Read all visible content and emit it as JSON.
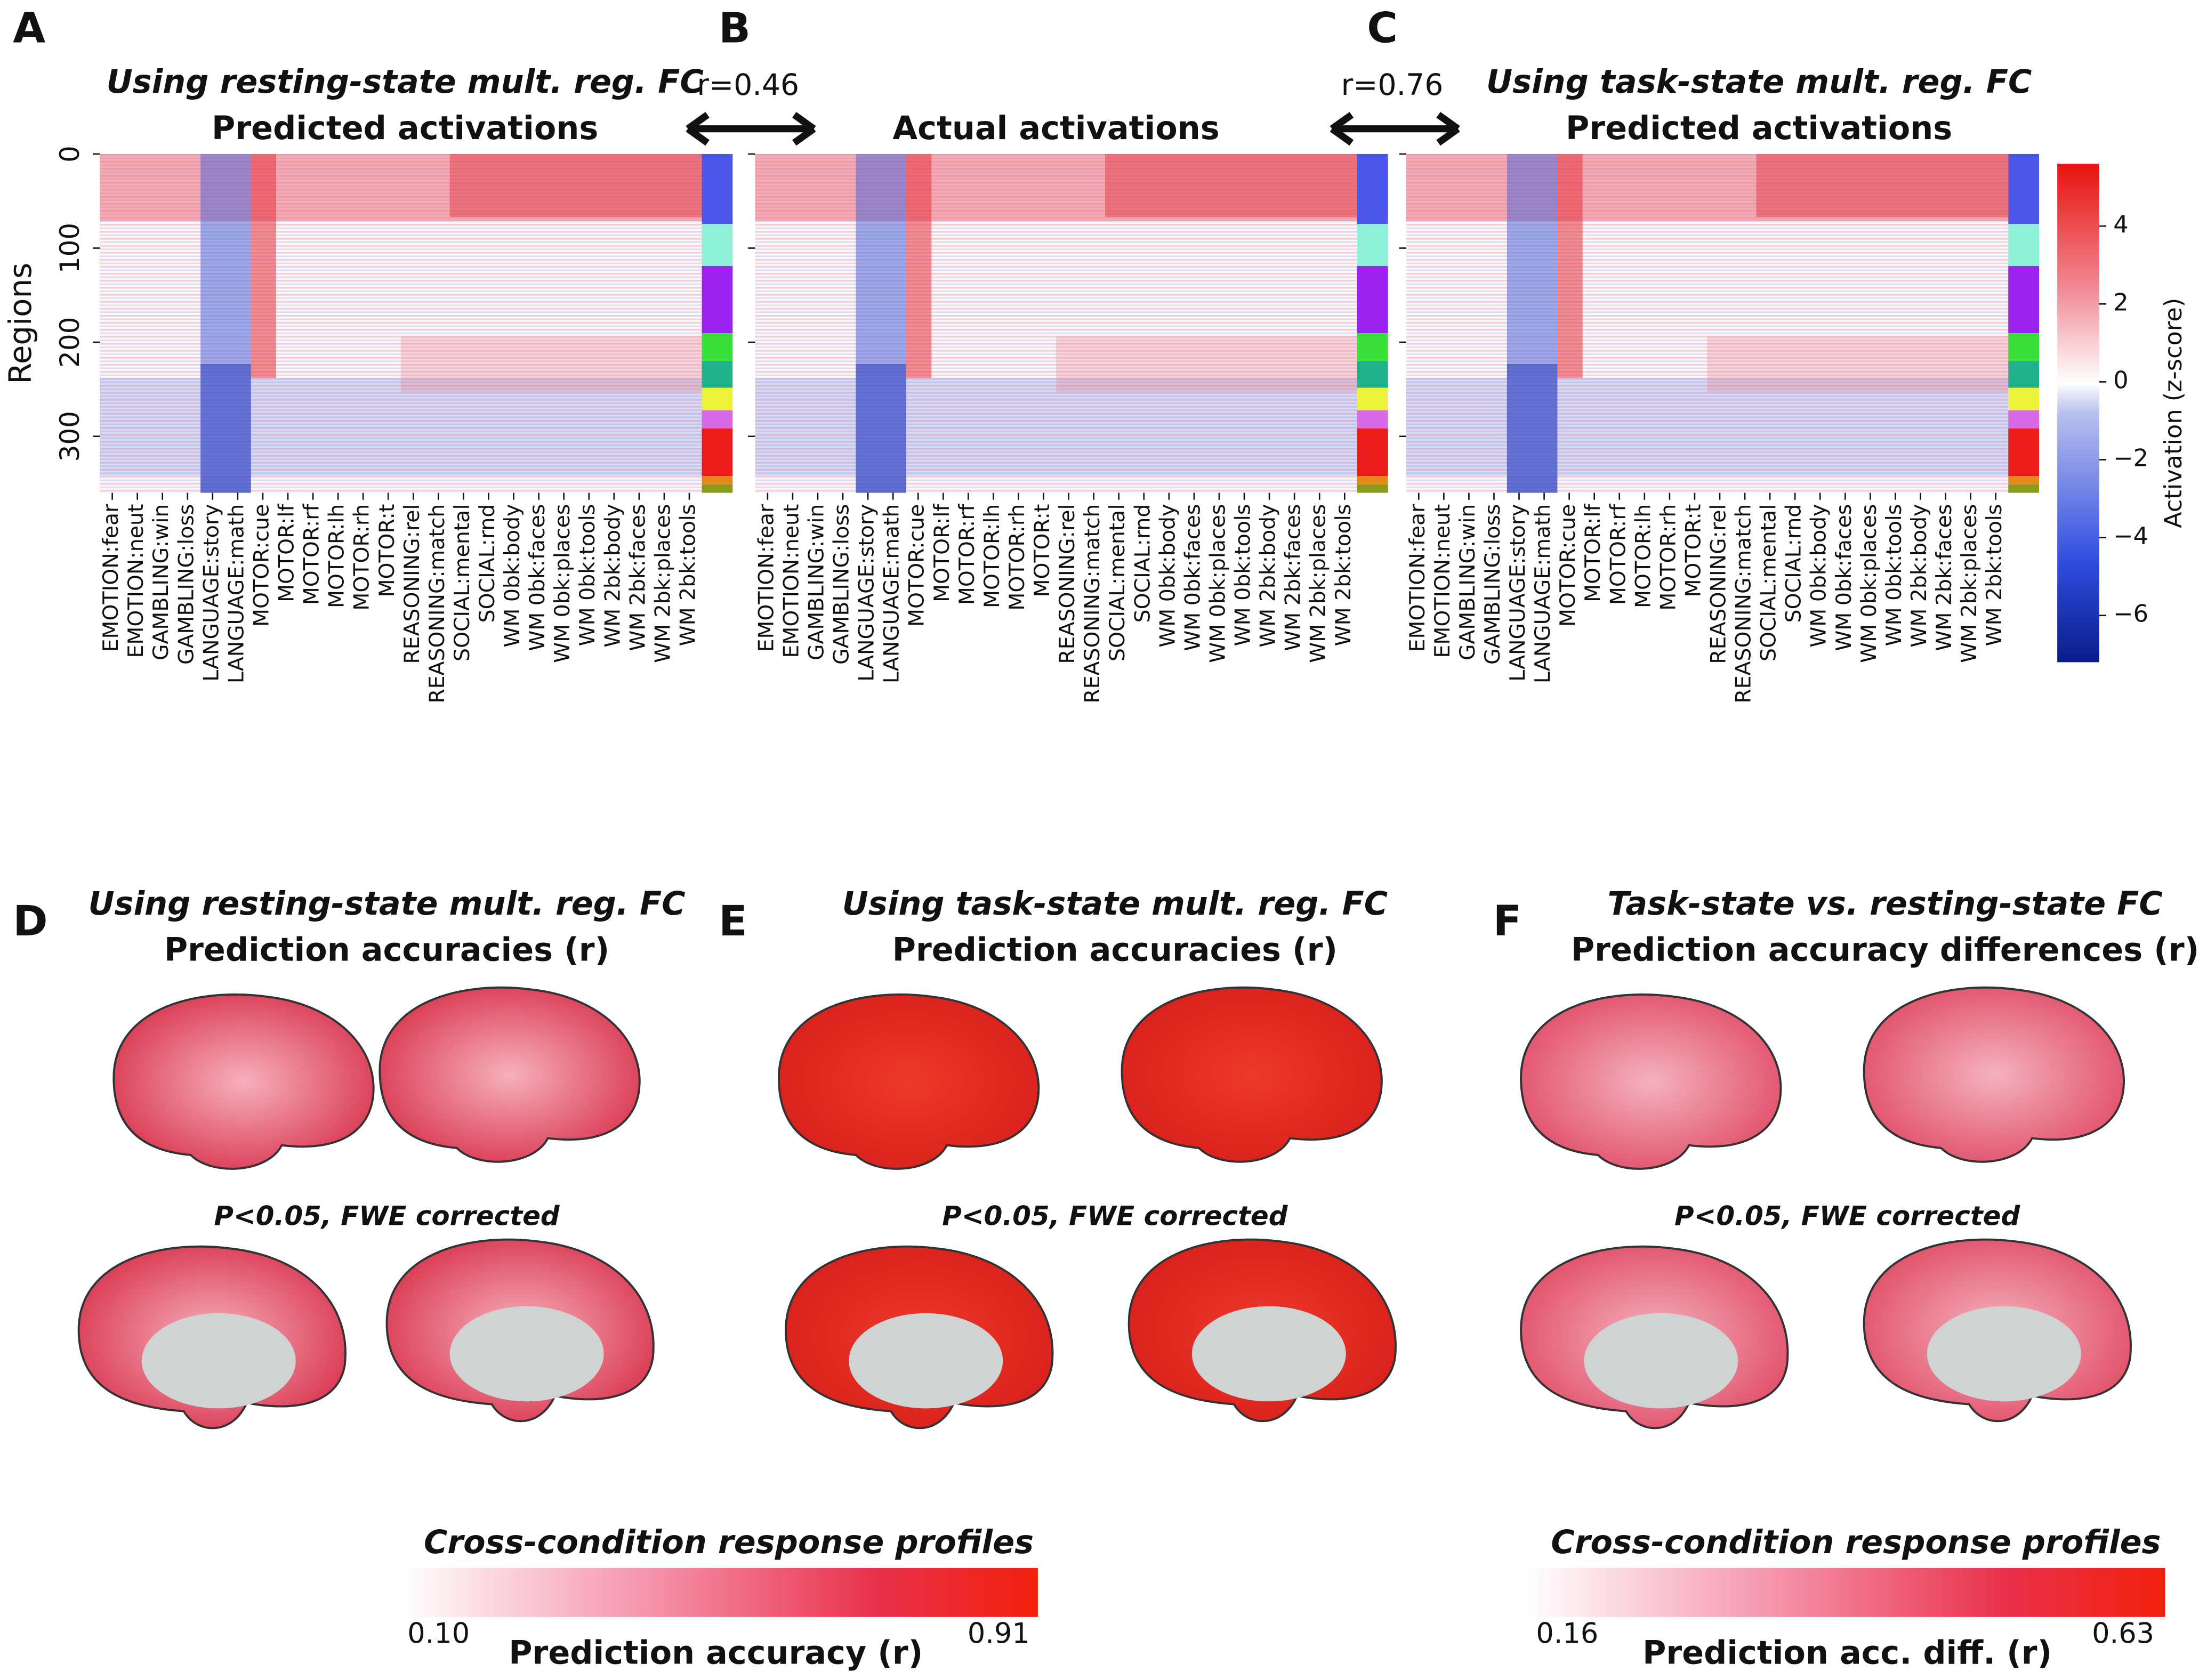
{
  "panels": [
    {
      "letter": "A",
      "subtitle": "Using resting-state mult. reg. FC",
      "title": "Predicted activations"
    },
    {
      "letter": "B",
      "title": "Actual activations"
    },
    {
      "letter": "C",
      "subtitle": "Using task-state mult. reg. FC",
      "title": "Predicted activations"
    }
  ],
  "comparisons": [
    "r=0.46",
    "r=0.76"
  ],
  "heatmap": {
    "y_label": "Regions",
    "ylim": [
      0,
      360
    ],
    "yticks": [
      0,
      100,
      200,
      300
    ],
    "conditions": [
      "EMOTION:fear",
      "EMOTION:neut",
      "GAMBLING:win",
      "GAMBLING:loss",
      "LANGUAGE:story",
      "LANGUAGE:math",
      "MOTOR:cue",
      "MOTOR:lf",
      "MOTOR:rf",
      "MOTOR:lh",
      "MOTOR:rh",
      "MOTOR:t",
      "REASONING:rel",
      "REASONING:match",
      "SOCIAL:mental",
      "SOCIAL:rnd",
      "WM 0bk:body",
      "WM 0bk:faces",
      "WM 0bk:places",
      "WM 0bk:tools",
      "WM 2bk:body",
      "WM 2bk:faces",
      "WM 2bk:places",
      "WM 2bk:tools"
    ]
  },
  "colorbar": {
    "label": "Activation (z-score)",
    "lim": [
      -7.2,
      5.6
    ],
    "ticks": [
      4,
      2,
      0,
      {
        "value": -2,
        "label": "−2"
      },
      {
        "value": -4,
        "label": "−4"
      },
      {
        "value": -6,
        "label": "−6"
      }
    ]
  },
  "brain_panels": [
    {
      "letter": "D",
      "subtitle": "Using resting-state mult. reg. FC",
      "title": "Prediction accuracies (r)",
      "note": "P<0.05, FWE corrected"
    },
    {
      "letter": "E",
      "subtitle": "Using task-state mult. reg. FC",
      "title": "Prediction accuracies (r)",
      "note": "P<0.05, FWE corrected"
    },
    {
      "letter": "F",
      "subtitle": "Task-state vs. resting-state FC",
      "title": "Prediction accuracy differences (r)",
      "note": "P<0.05, FWE corrected"
    }
  ],
  "legends": [
    {
      "title": "Cross-condition response profiles",
      "min": {
        "value": 0.1,
        "label": "0.10"
      },
      "max": 0.91,
      "label": "Prediction accuracy (r)"
    },
    {
      "title": "Cross-condition response profiles",
      "min": 0.16,
      "max": 0.63,
      "label": "Prediction acc. diff. (r)"
    }
  ]
}
